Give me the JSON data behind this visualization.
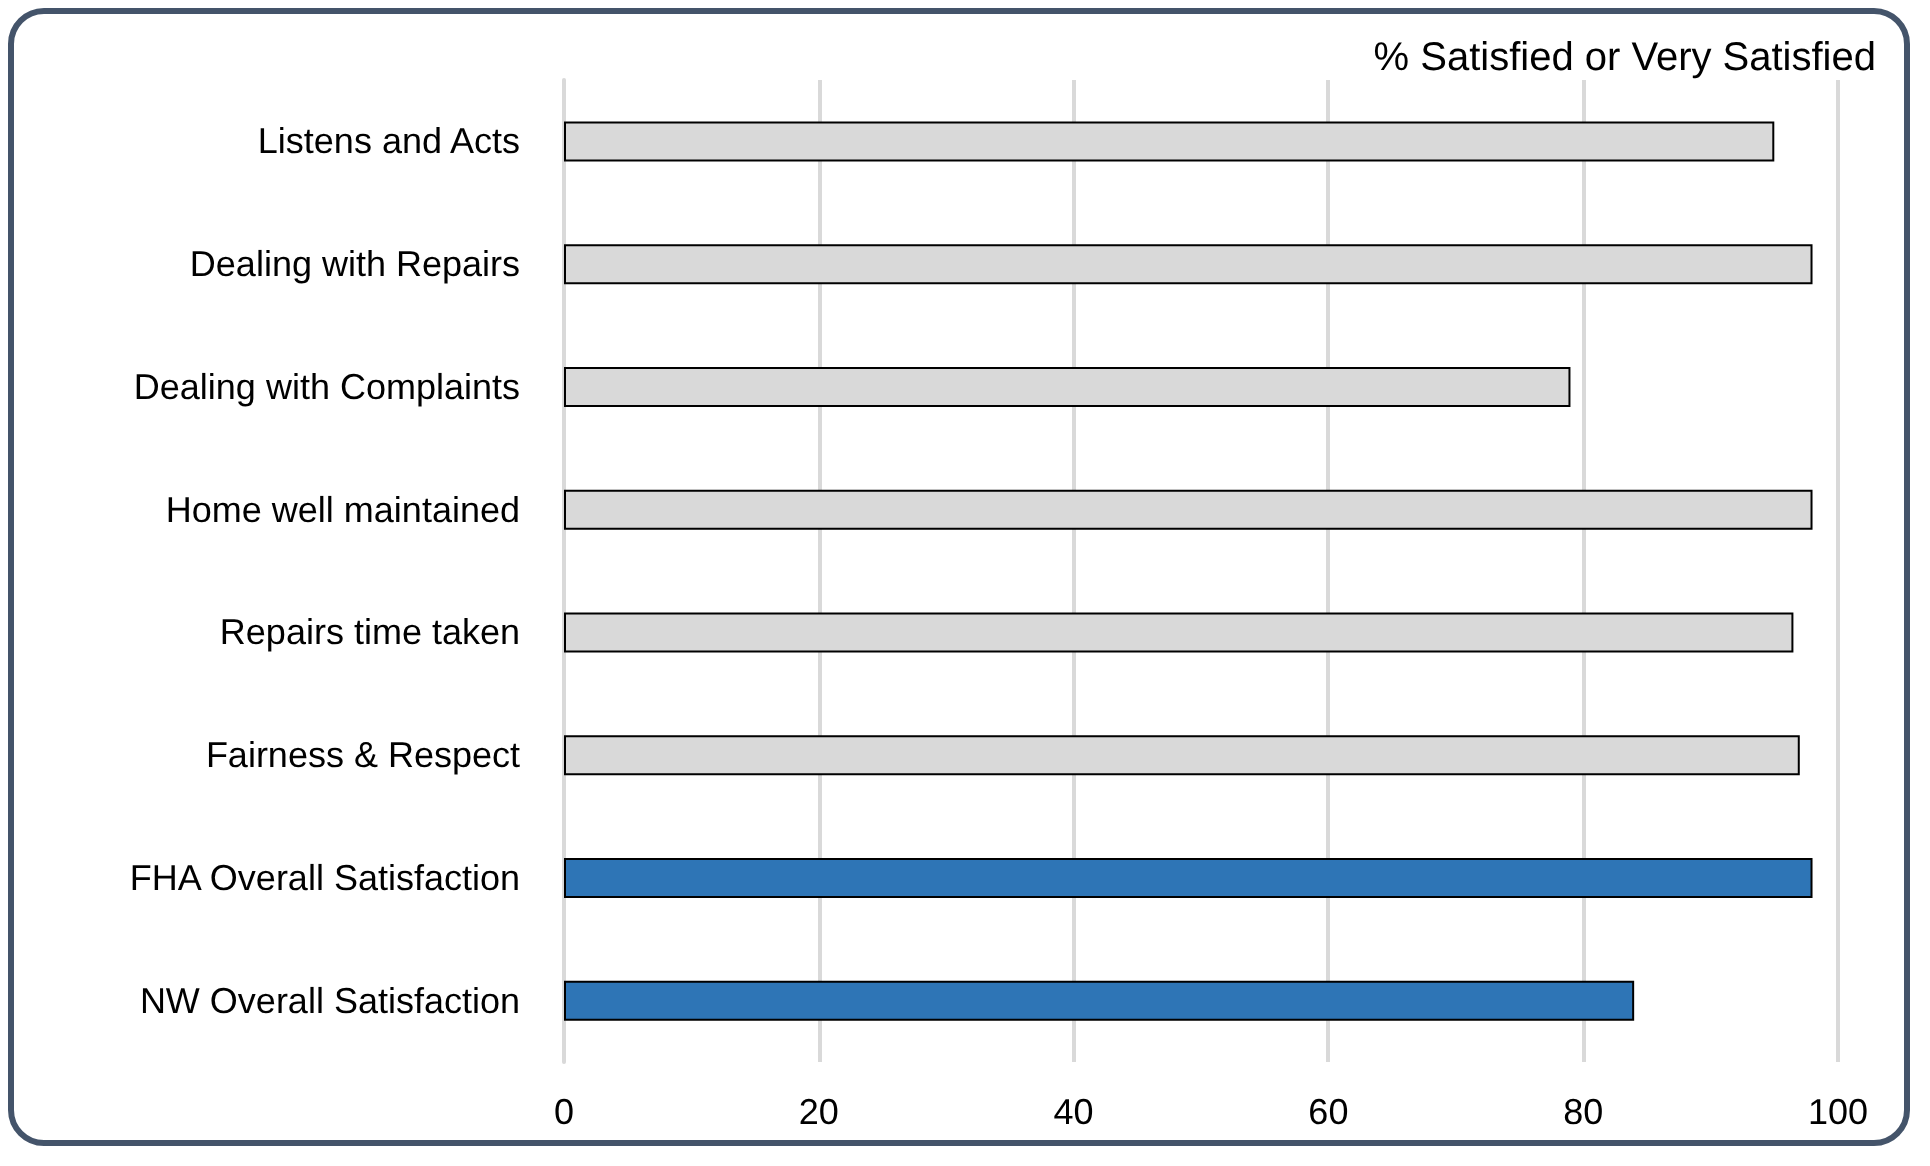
{
  "chart_data": {
    "type": "bar",
    "orientation": "horizontal",
    "title": "% Satisfied or Very Satisfied",
    "categories": [
      "Listens and Acts",
      "Dealing with Repairs",
      "Dealing with Complaints",
      "Home well maintained",
      "Repairs time taken",
      "Fairness & Respect",
      "FHA Overall Satisfaction",
      "NW Overall Satisfaction"
    ],
    "values": [
      95,
      98,
      79,
      98,
      96.5,
      97,
      98,
      84
    ],
    "colors": [
      "#d9d9d9",
      "#d9d9d9",
      "#d9d9d9",
      "#d9d9d9",
      "#d9d9d9",
      "#d9d9d9",
      "#2e75b6",
      "#2e75b6"
    ],
    "xlim": [
      0,
      100
    ],
    "xticks": [
      0,
      20,
      40,
      60,
      80,
      100
    ],
    "grid": "x"
  }
}
